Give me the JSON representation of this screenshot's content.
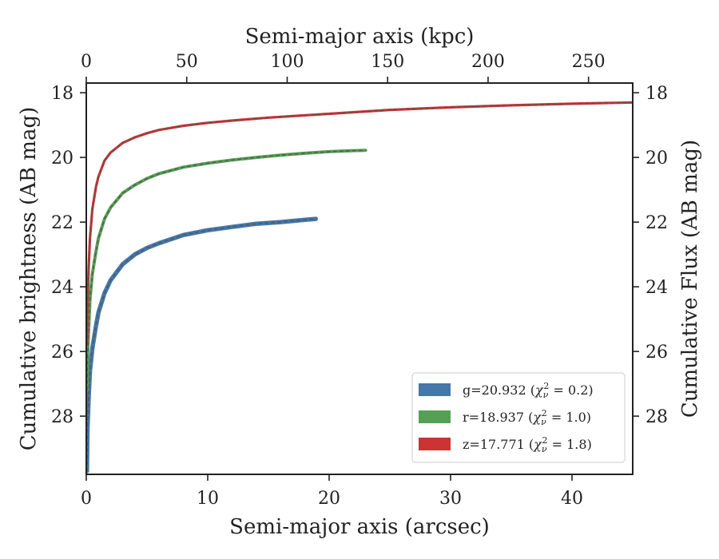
{
  "chart_data": {
    "type": "line",
    "title": "",
    "xlabel": "Semi-major axis (arcsec)",
    "ylabel": "Cumulative brightness (AB mag)",
    "x2label": "Semi-major axis (kpc)",
    "y2label": "Cumulative Flux (AB mag)",
    "xlim": [
      0,
      45
    ],
    "ylim": [
      29.8,
      17.7
    ],
    "x2lim": [
      0,
      272
    ],
    "y_inverted": true,
    "xticks": [
      0,
      10,
      20,
      30,
      40
    ],
    "x2ticks": [
      0,
      50,
      100,
      150,
      200,
      250
    ],
    "yticks": [
      18,
      20,
      22,
      24,
      26,
      28
    ],
    "y2ticks": [
      18,
      20,
      22,
      24,
      26,
      28
    ],
    "grid": false,
    "legend_position": "lower-right",
    "series": [
      {
        "name": "g=20.932 (χ²_ν = 0.2)",
        "legend_main": "g=20.932 (",
        "legend_chi": "χ",
        "legend_nu": "ν",
        "legend_pow": "2",
        "legend_tail": " = 0.2)",
        "color": "#4477aa",
        "x": [
          0.05,
          0.1,
          0.2,
          0.3,
          0.5,
          0.8,
          1.0,
          1.5,
          2.0,
          3.0,
          4.0,
          5.0,
          6.0,
          8.0,
          10.0,
          12.0,
          14.0,
          16.0,
          18.0,
          18.9
        ],
        "y": [
          29.7,
          28.4,
          27.4,
          26.6,
          25.9,
          25.2,
          24.8,
          24.2,
          23.8,
          23.3,
          23.0,
          22.8,
          22.65,
          22.4,
          22.25,
          22.15,
          22.05,
          22.0,
          21.93,
          21.9
        ]
      },
      {
        "name": "r=18.937 (χ²_ν = 1.0)",
        "legend_main": "r=18.937 (",
        "legend_chi": "χ",
        "legend_nu": "ν",
        "legend_pow": "2",
        "legend_tail": " = 1.0)",
        "color": "#55a055",
        "x": [
          0.05,
          0.1,
          0.2,
          0.3,
          0.5,
          0.8,
          1.0,
          1.5,
          2.0,
          3.0,
          4.0,
          5.0,
          6.0,
          8.0,
          10.0,
          12.0,
          14.0,
          16.0,
          18.0,
          20.0,
          22.0,
          23.0
        ],
        "y": [
          27.2,
          26.2,
          25.3,
          24.4,
          23.6,
          22.9,
          22.5,
          21.9,
          21.55,
          21.1,
          20.85,
          20.65,
          20.5,
          20.3,
          20.18,
          20.08,
          20.0,
          19.93,
          19.87,
          19.82,
          19.79,
          19.78
        ]
      },
      {
        "name": "z=17.771 (χ²_ν = 1.8)",
        "legend_main": "z=17.771 (",
        "legend_chi": "χ",
        "legend_nu": "ν",
        "legend_pow": "2",
        "legend_tail": " = 1.8)",
        "color": "#cc3333",
        "x": [
          0.05,
          0.1,
          0.2,
          0.3,
          0.5,
          0.8,
          1.0,
          1.5,
          2.0,
          3.0,
          4.0,
          5.0,
          6.0,
          8.0,
          10.0,
          12.0,
          15.0,
          20.0,
          25.0,
          30.0,
          35.0,
          40.0,
          45.0
        ],
        "y": [
          25.8,
          24.6,
          23.4,
          22.5,
          21.6,
          20.9,
          20.6,
          20.1,
          19.85,
          19.55,
          19.38,
          19.25,
          19.15,
          19.02,
          18.93,
          18.86,
          18.77,
          18.65,
          18.53,
          18.45,
          18.39,
          18.34,
          18.3
        ]
      }
    ]
  }
}
